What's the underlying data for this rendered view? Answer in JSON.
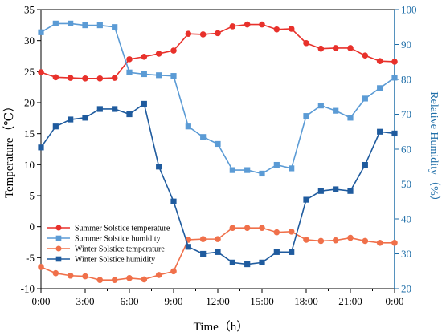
{
  "chart_data": {
    "type": "line",
    "xlabel": "Time（h）",
    "ylabel_left": "Temperature（℃）",
    "ylabel_right": "Relative Humidity（%）",
    "ylim_left": [
      -10,
      35
    ],
    "ylim_right": [
      20,
      100
    ],
    "xlim": [
      0,
      24
    ],
    "x_ticks": [
      0,
      3,
      6,
      9,
      12,
      15,
      18,
      21,
      24
    ],
    "x_tick_labels": [
      "0:00",
      "3:00",
      "6:00",
      "9:00",
      "12:00",
      "15:00",
      "18:00",
      "21:00",
      "0:00"
    ],
    "y_ticks_left": [
      -10,
      -5,
      0,
      5,
      10,
      15,
      20,
      25,
      30,
      35
    ],
    "y_ticks_right": [
      20,
      30,
      40,
      50,
      60,
      70,
      80,
      90,
      100
    ],
    "legend_position": "bottom-left",
    "grid": false,
    "x": [
      0,
      1,
      2,
      3,
      4,
      5,
      6,
      7,
      8,
      9,
      10,
      11,
      12,
      13,
      14,
      15,
      16,
      17,
      18,
      19,
      20,
      21,
      22,
      23,
      24
    ],
    "series": [
      {
        "name": "Summer Solstice temperature",
        "axis": "left",
        "color": "#e8312b",
        "marker": "circle",
        "values": [
          24.9,
          24.1,
          24.0,
          23.9,
          23.9,
          24.0,
          27.0,
          27.4,
          27.9,
          28.4,
          31.1,
          31.0,
          31.2,
          32.3,
          32.6,
          32.6,
          31.8,
          31.9,
          29.6,
          28.7,
          28.8,
          28.8,
          27.6,
          26.7,
          26.6
        ]
      },
      {
        "name": "Summer Solstice humidity",
        "axis": "right",
        "color": "#5b9bd5",
        "marker": "square",
        "values": [
          93.5,
          96.0,
          96.0,
          95.5,
          95.5,
          95.0,
          82.0,
          81.5,
          81.2,
          81.0,
          66.5,
          63.5,
          61.5,
          54.0,
          54.0,
          53.0,
          55.5,
          54.5,
          69.5,
          72.5,
          71.0,
          69.0,
          74.5,
          77.5,
          80.5
        ]
      },
      {
        "name": "Winter Solstice temperature",
        "axis": "left",
        "color": "#f0704a",
        "marker": "circle",
        "values": [
          -6.5,
          -7.5,
          -7.9,
          -8.0,
          -8.6,
          -8.6,
          -8.3,
          -8.5,
          -7.8,
          -7.2,
          -2.1,
          -2.0,
          -2.0,
          -0.2,
          -0.2,
          -0.2,
          -0.9,
          -0.8,
          -2.1,
          -2.3,
          -2.2,
          -1.8,
          -2.3,
          -2.6,
          -2.6
        ]
      },
      {
        "name": "Winter Solstice humidity",
        "axis": "right",
        "color": "#1f5b9e",
        "marker": "square",
        "values": [
          60.5,
          66.5,
          68.5,
          69.0,
          71.5,
          71.5,
          70.0,
          73.0,
          55.0,
          45.0,
          32.0,
          30.0,
          30.5,
          27.5,
          27.0,
          27.5,
          30.5,
          30.5,
          45.5,
          48.0,
          48.5,
          48.0,
          55.5,
          65.0,
          64.5
        ]
      }
    ]
  }
}
